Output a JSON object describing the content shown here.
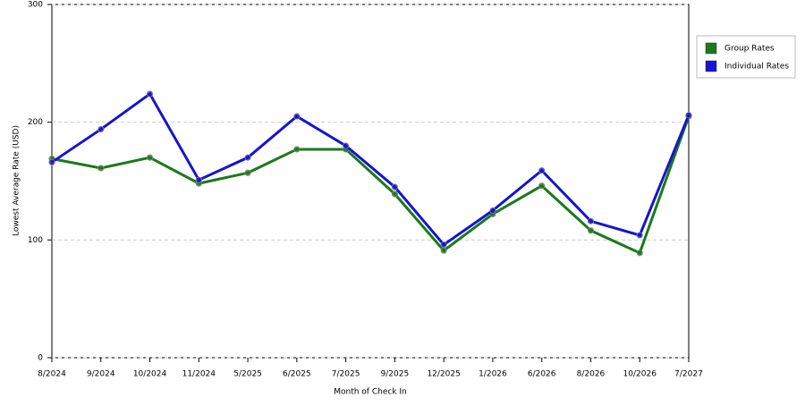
{
  "chart_data": {
    "type": "line",
    "x_label": "Month of Check In",
    "y_label": "Lowest Average Rate (USD)",
    "categories": [
      "8/2024",
      "9/2024",
      "10/2024",
      "11/2024",
      "5/2025",
      "6/2025",
      "7/2025",
      "9/2025",
      "12/2025",
      "1/2026",
      "6/2026",
      "8/2026",
      "10/2026",
      "7/2027"
    ],
    "series": [
      {
        "name": "Group Rates",
        "color": "#1a7a1a",
        "values": [
          169,
          161,
          170,
          148,
          157,
          177,
          177,
          139,
          91,
          122,
          146,
          108,
          89,
          205
        ]
      },
      {
        "name": "Individual Rates",
        "color": "#1414d2",
        "values": [
          166,
          194,
          224,
          151,
          170,
          205,
          180,
          145,
          96,
          125,
          159,
          116,
          104,
          206
        ]
      }
    ],
    "ylim": [
      0,
      300
    ],
    "yticks": [
      0,
      100,
      200,
      300
    ],
    "grid": true,
    "legend": "right"
  }
}
